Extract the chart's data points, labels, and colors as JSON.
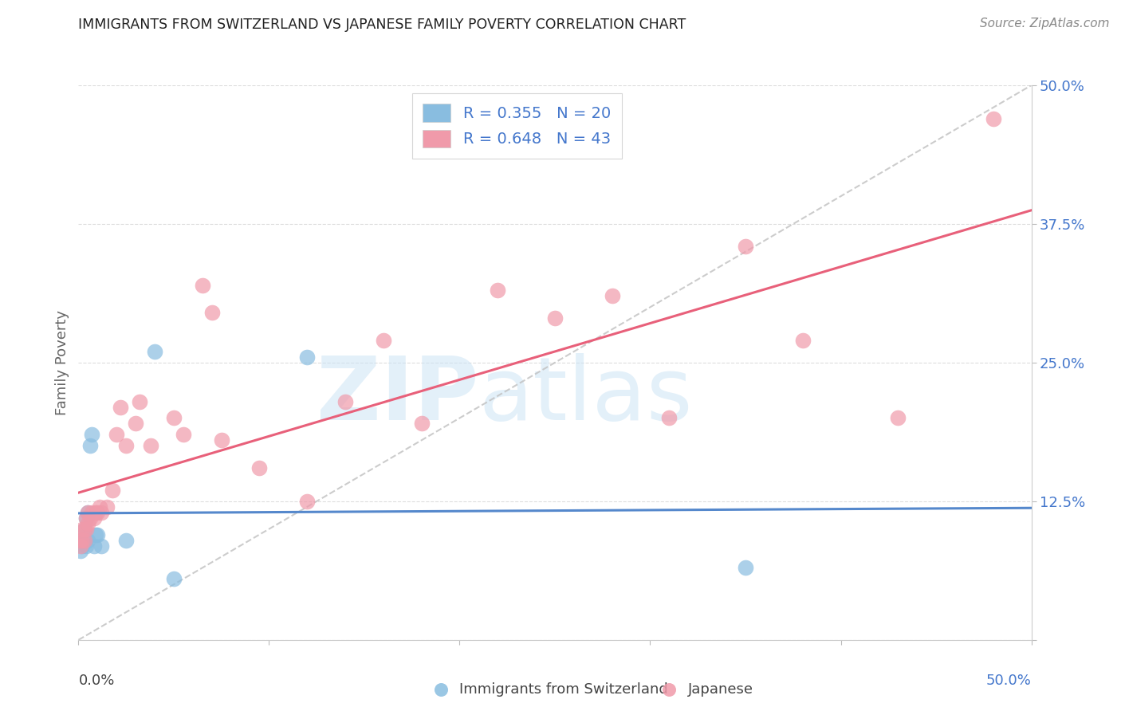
{
  "title": "IMMIGRANTS FROM SWITZERLAND VS JAPANESE FAMILY POVERTY CORRELATION CHART",
  "source": "Source: ZipAtlas.com",
  "ylabel": "Family Poverty",
  "legend_label1": "R = 0.355   N = 20",
  "legend_label2": "R = 0.648   N = 43",
  "bottom_label1": "Immigrants from Switzerland",
  "bottom_label2": "Japanese",
  "xlim": [
    0,
    0.5
  ],
  "ylim": [
    0,
    0.5
  ],
  "yticks": [
    0.0,
    0.125,
    0.25,
    0.375,
    0.5
  ],
  "ytick_labels": [
    "",
    "12.5%",
    "25.0%",
    "37.5%",
    "50.0%"
  ],
  "color_swiss": "#89bde0",
  "color_japan": "#f09aaa",
  "color_swiss_line": "#5588cc",
  "color_japan_line": "#e8607a",
  "color_dashed": "#c0c0c0",
  "swiss_points_x": [
    0.001,
    0.002,
    0.002,
    0.003,
    0.003,
    0.004,
    0.004,
    0.005,
    0.005,
    0.006,
    0.007,
    0.008,
    0.009,
    0.01,
    0.012,
    0.025,
    0.04,
    0.05,
    0.12,
    0.35
  ],
  "swiss_points_y": [
    0.08,
    0.085,
    0.09,
    0.1,
    0.09,
    0.085,
    0.11,
    0.09,
    0.115,
    0.175,
    0.185,
    0.085,
    0.095,
    0.095,
    0.085,
    0.09,
    0.26,
    0.055,
    0.255,
    0.065
  ],
  "japan_points_x": [
    0.001,
    0.001,
    0.002,
    0.002,
    0.003,
    0.003,
    0.004,
    0.004,
    0.005,
    0.005,
    0.006,
    0.007,
    0.008,
    0.009,
    0.01,
    0.011,
    0.012,
    0.015,
    0.018,
    0.02,
    0.022,
    0.025,
    0.03,
    0.032,
    0.038,
    0.05,
    0.055,
    0.065,
    0.07,
    0.075,
    0.095,
    0.12,
    0.14,
    0.16,
    0.18,
    0.22,
    0.25,
    0.28,
    0.31,
    0.35,
    0.38,
    0.43,
    0.48
  ],
  "japan_points_y": [
    0.085,
    0.09,
    0.09,
    0.1,
    0.09,
    0.1,
    0.1,
    0.11,
    0.105,
    0.115,
    0.11,
    0.115,
    0.11,
    0.115,
    0.115,
    0.12,
    0.115,
    0.12,
    0.135,
    0.185,
    0.21,
    0.175,
    0.195,
    0.215,
    0.175,
    0.2,
    0.185,
    0.32,
    0.295,
    0.18,
    0.155,
    0.125,
    0.215,
    0.27,
    0.195,
    0.315,
    0.29,
    0.31,
    0.2,
    0.355,
    0.27,
    0.2,
    0.47
  ]
}
